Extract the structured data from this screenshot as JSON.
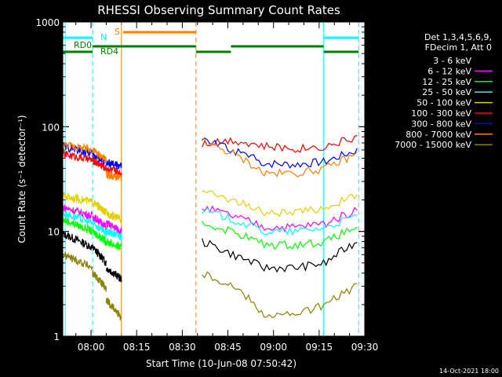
{
  "chart_data": {
    "type": "line",
    "title": "RHESSI Observing Summary Count Rates",
    "xlabel": "Start Time (10-Jun-08 07:50:42)",
    "ylabel": "Count Rate (s⁻¹ detector⁻¹)",
    "yscale": "log",
    "ylim": [
      1,
      1000
    ],
    "xlim": [
      "07:50:42",
      "09:30:00"
    ],
    "x_ticks": [
      "08:00",
      "08:15",
      "08:30",
      "08:45",
      "09:00",
      "09:15",
      "09:30"
    ],
    "y_ticks": [
      "1",
      "10",
      "100",
      "1000"
    ],
    "legend_header": [
      "Det 1,3,4,5,6,9,",
      "FDecim 1, Att 0"
    ],
    "legend_position": "top-right",
    "series": [
      {
        "name": "3 - 6 keV",
        "color": "#000000"
      },
      {
        "name": "6 - 12 keV",
        "color": "#ff00ff"
      },
      {
        "name": "12 - 25 keV",
        "color": "#00ff00"
      },
      {
        "name": "25 - 50 keV",
        "color": "#00ffff"
      },
      {
        "name": "50 - 100 keV",
        "color": "#e0d000"
      },
      {
        "name": "100 - 300 keV",
        "color": "#ff0000"
      },
      {
        "name": "300 - 800 keV",
        "color": "#0000ff"
      },
      {
        "name": "800 - 7000 keV",
        "color": "#ff8000"
      },
      {
        "name": "7000 - 15000 keV",
        "color": "#8b8000"
      }
    ],
    "annotations": [
      {
        "label": "N",
        "color": "#00ffff"
      },
      {
        "label": "S",
        "color": "#ff8000"
      },
      {
        "label": "RD0",
        "color": "#008000"
      },
      {
        "label": "RD4",
        "color": "#008000"
      }
    ]
  },
  "timestamp": "14-Oct-2021 18:00"
}
